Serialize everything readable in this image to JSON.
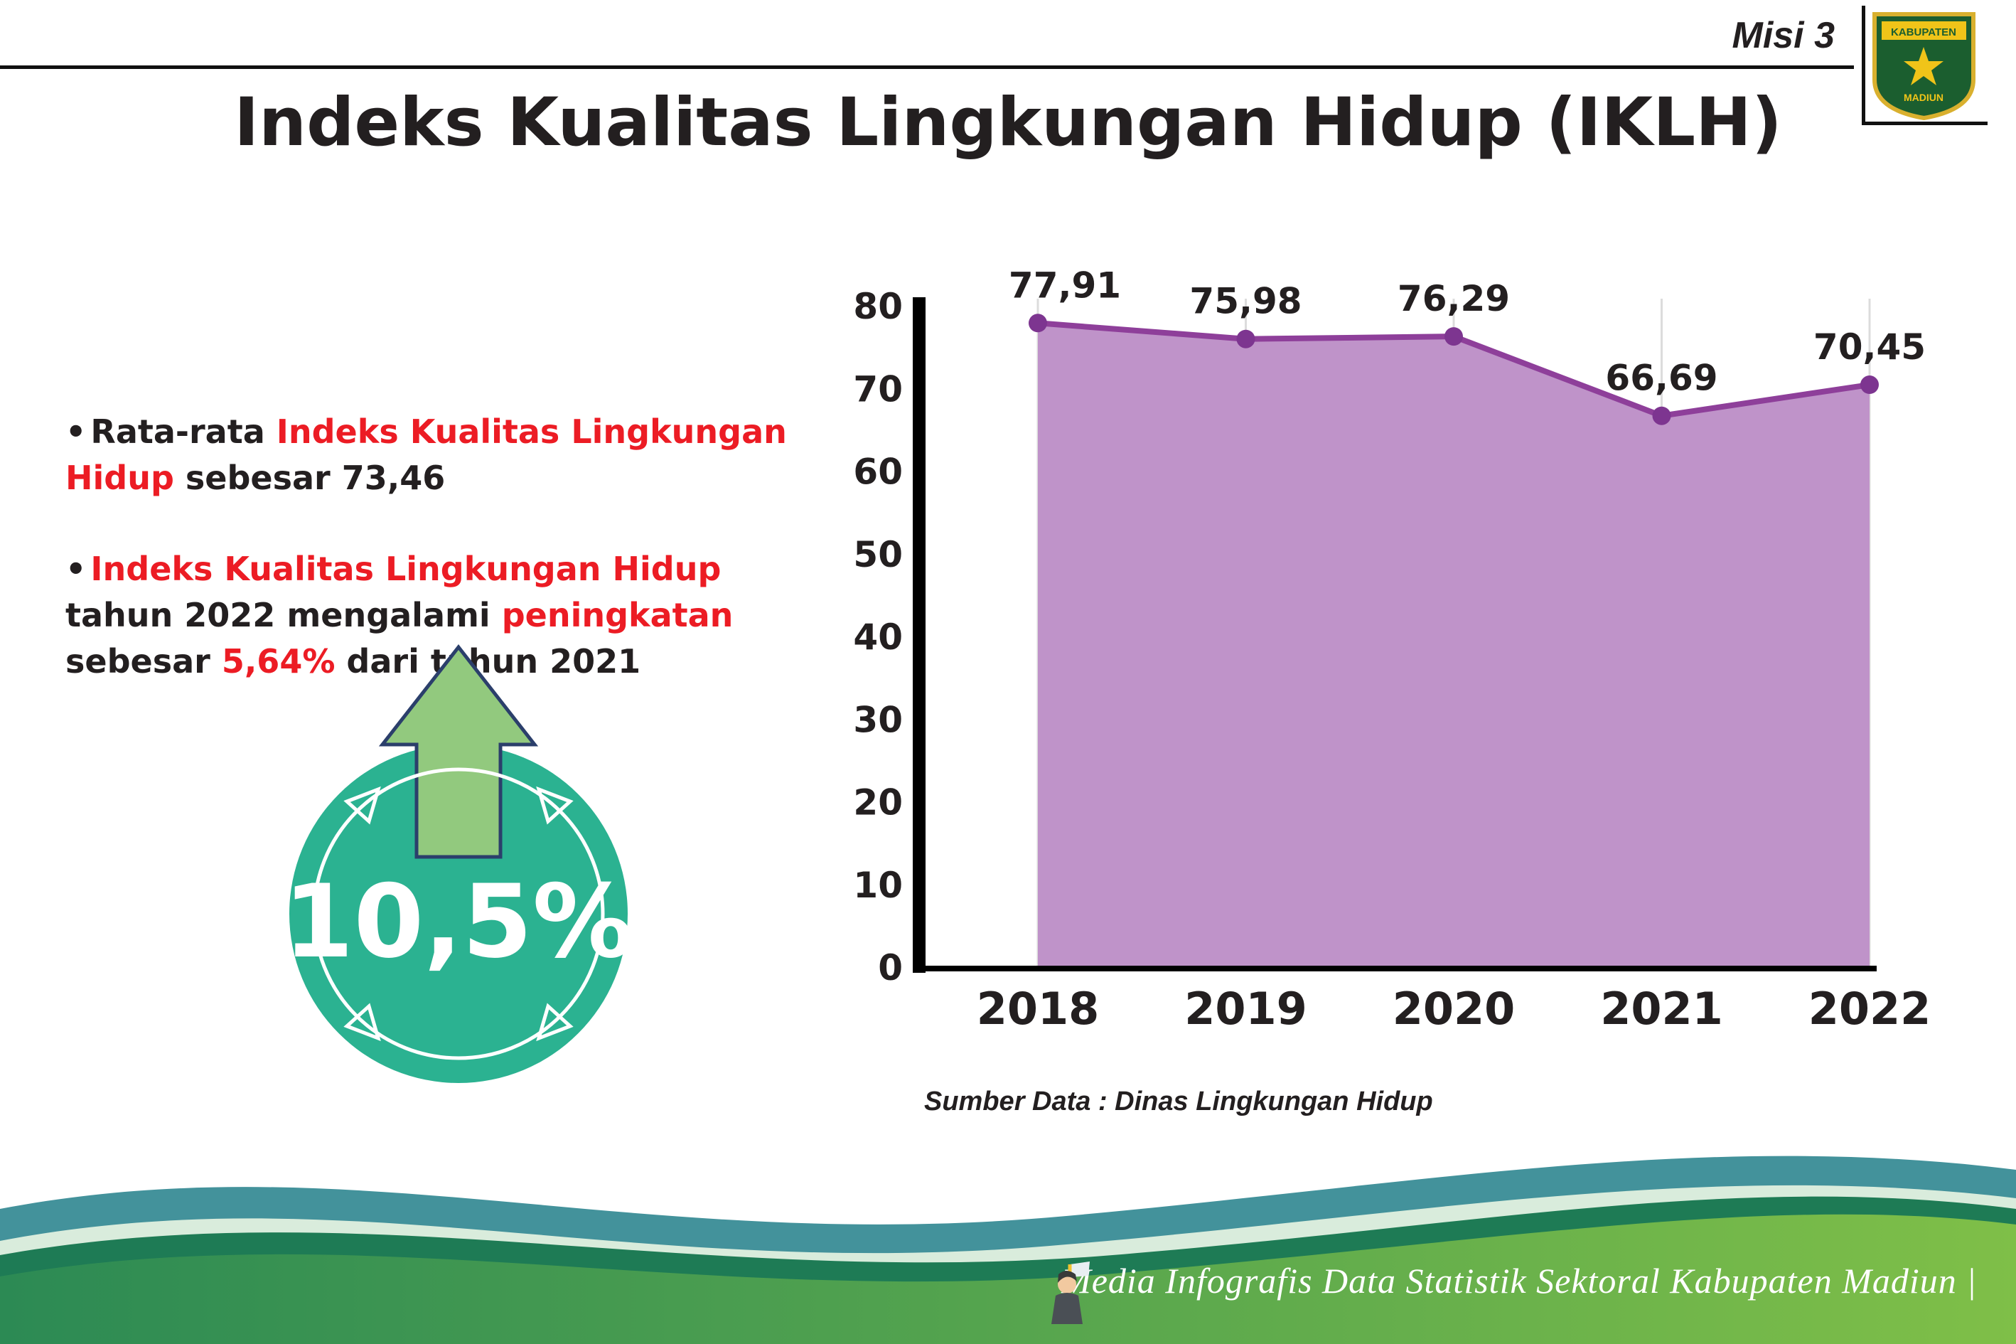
{
  "header": {
    "misi_label": "Misi 3",
    "title": "Indeks Kualitas Lingkungan Hidup (IKLH)",
    "logo_text_top": "KABUPATEN",
    "logo_text_bottom": "MADIUN"
  },
  "bullets": [
    {
      "segments": [
        {
          "text": "Rata-rata ",
          "color": "dark"
        },
        {
          "text": "Indeks Kualitas Lingkungan Hidup",
          "color": "red"
        },
        {
          "text": " sebesar 73,46",
          "color": "dark"
        }
      ]
    },
    {
      "segments": [
        {
          "text": "Indeks Kualitas Lingkungan Hidup",
          "color": "red"
        },
        {
          "text": " tahun 2022 mengalami ",
          "color": "dark"
        },
        {
          "text": "peningkatan",
          "color": "red"
        },
        {
          "text": " sebesar ",
          "color": "dark"
        },
        {
          "text": "5,64%",
          "color": "red"
        },
        {
          "text": " dari tahun 2021",
          "color": "dark"
        }
      ]
    }
  ],
  "badge": {
    "value": "10,5%",
    "circle_color": "#2bb291",
    "arrow_color": "#92c97e"
  },
  "chart_data": {
    "type": "area",
    "title": "",
    "categories": [
      "2018",
      "2019",
      "2020",
      "2021",
      "2022"
    ],
    "values": [
      77.91,
      75.98,
      76.29,
      66.69,
      70.45
    ],
    "value_labels": [
      "77,91",
      "75,98",
      "76,29",
      "66,69",
      "70,45"
    ],
    "ylim": [
      0,
      80
    ],
    "yticks": [
      0,
      10,
      20,
      30,
      40,
      50,
      60,
      70,
      80
    ],
    "fill_color": "#bf93c9",
    "line_color": "#8e3f9a",
    "point_color": "#7d3590",
    "grid": "vertical-light",
    "legend": "none",
    "source": "Sumber Data : Dinas Lingkungan Hidup"
  },
  "footer": {
    "text": "Media Infografis Data Statistik Sektoral Kabupaten Madiun |"
  }
}
